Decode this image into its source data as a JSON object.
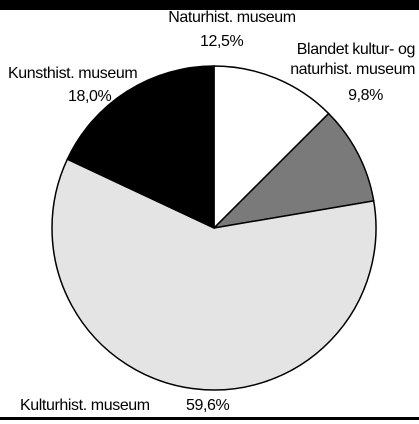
{
  "chart_data": {
    "type": "pie",
    "categories": [
      "Naturhist. museum",
      "Blandet kultur- og naturhist. museum",
      "Kulturhist. museum",
      "Kunsthist. museum"
    ],
    "values": [
      12.5,
      9.8,
      59.6,
      18.0
    ],
    "value_labels": [
      "12,5%",
      "9,8%",
      "59,6%",
      "18,0%"
    ],
    "colors": [
      "#ffffff",
      "#7a7a7a",
      "#e4e4e4",
      "#000000"
    ]
  }
}
